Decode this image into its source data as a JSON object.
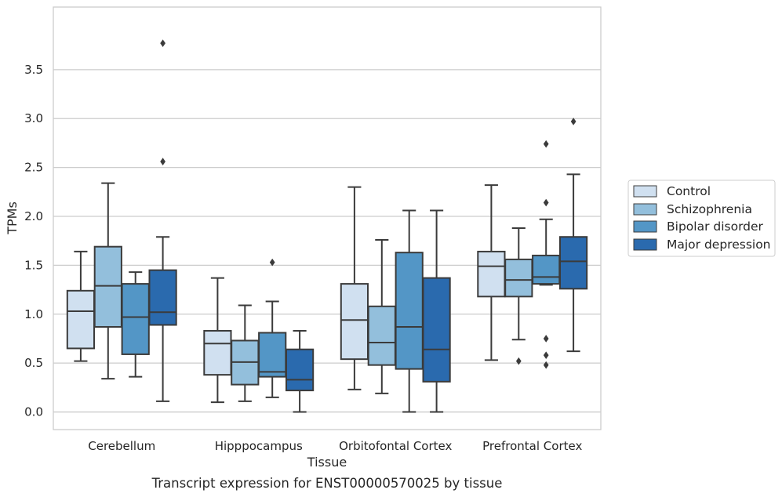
{
  "chart_data": {
    "type": "box",
    "xlabel": "Tissue",
    "ylabel": "TPMs",
    "caption": "Transcript expression for ENST00000570025 by tissue",
    "ylim": [
      -0.18,
      4.14
    ],
    "yticks": [
      "0.0",
      "0.5",
      "1.0",
      "1.5",
      "2.0",
      "2.5",
      "3.0",
      "3.5"
    ],
    "grid": "horizontal",
    "legend_position": "right",
    "categories": [
      "Cerebellum",
      "Hipppocampus",
      "Orbitofontal Cortex",
      "Prefrontal Cortex"
    ],
    "series": [
      {
        "name": "Control",
        "color": "#d0e0f0",
        "boxes": [
          {
            "whislo": 0.52,
            "q1": 0.65,
            "med": 1.03,
            "q3": 1.24,
            "whishi": 1.64,
            "fliers": []
          },
          {
            "whislo": 0.1,
            "q1": 0.38,
            "med": 0.7,
            "q3": 0.83,
            "whishi": 1.37,
            "fliers": []
          },
          {
            "whislo": 0.23,
            "q1": 0.54,
            "med": 0.94,
            "q3": 1.31,
            "whishi": 2.3,
            "fliers": []
          },
          {
            "whislo": 0.53,
            "q1": 1.18,
            "med": 1.49,
            "q3": 1.64,
            "whishi": 2.32,
            "fliers": []
          }
        ]
      },
      {
        "name": "Schizophrenia",
        "color": "#93bfdc",
        "boxes": [
          {
            "whislo": 0.34,
            "q1": 0.87,
            "med": 1.29,
            "q3": 1.69,
            "whishi": 2.34,
            "fliers": []
          },
          {
            "whislo": 0.11,
            "q1": 0.28,
            "med": 0.51,
            "q3": 0.73,
            "whishi": 1.09,
            "fliers": []
          },
          {
            "whislo": 0.19,
            "q1": 0.48,
            "med": 0.71,
            "q3": 1.08,
            "whishi": 1.76,
            "fliers": []
          },
          {
            "whislo": 0.74,
            "q1": 1.18,
            "med": 1.35,
            "q3": 1.56,
            "whishi": 1.88,
            "fliers": [
              0.52
            ]
          }
        ]
      },
      {
        "name": "Bipolar disorder",
        "color": "#5396c6",
        "boxes": [
          {
            "whislo": 0.36,
            "q1": 0.59,
            "med": 0.97,
            "q3": 1.31,
            "whishi": 1.43,
            "fliers": []
          },
          {
            "whislo": 0.15,
            "q1": 0.36,
            "med": 0.41,
            "q3": 0.81,
            "whishi": 1.13,
            "fliers": [
              1.53
            ]
          },
          {
            "whislo": 0.0,
            "q1": 0.44,
            "med": 0.87,
            "q3": 1.63,
            "whishi": 2.06,
            "fliers": []
          },
          {
            "whislo": 1.3,
            "q1": 1.31,
            "med": 1.38,
            "q3": 1.6,
            "whishi": 1.97,
            "fliers": [
              2.74,
              2.14,
              0.75,
              0.58,
              0.48
            ]
          }
        ]
      },
      {
        "name": "Major depression",
        "color": "#2a6aae",
        "boxes": [
          {
            "whislo": 0.11,
            "q1": 0.89,
            "med": 1.02,
            "q3": 1.45,
            "whishi": 1.79,
            "fliers": [
              3.77,
              2.56
            ]
          },
          {
            "whislo": 0.0,
            "q1": 0.22,
            "med": 0.33,
            "q3": 0.64,
            "whishi": 0.83,
            "fliers": []
          },
          {
            "whislo": 0.0,
            "q1": 0.31,
            "med": 0.64,
            "q3": 1.37,
            "whishi": 2.06,
            "fliers": []
          },
          {
            "whislo": 0.62,
            "q1": 1.26,
            "med": 1.54,
            "q3": 1.79,
            "whishi": 2.43,
            "fliers": [
              2.97
            ]
          }
        ]
      }
    ]
  },
  "style": {
    "grid_color": "#cccccc",
    "frame_color": "#cccccc",
    "line_color": "#3b3b3b"
  }
}
